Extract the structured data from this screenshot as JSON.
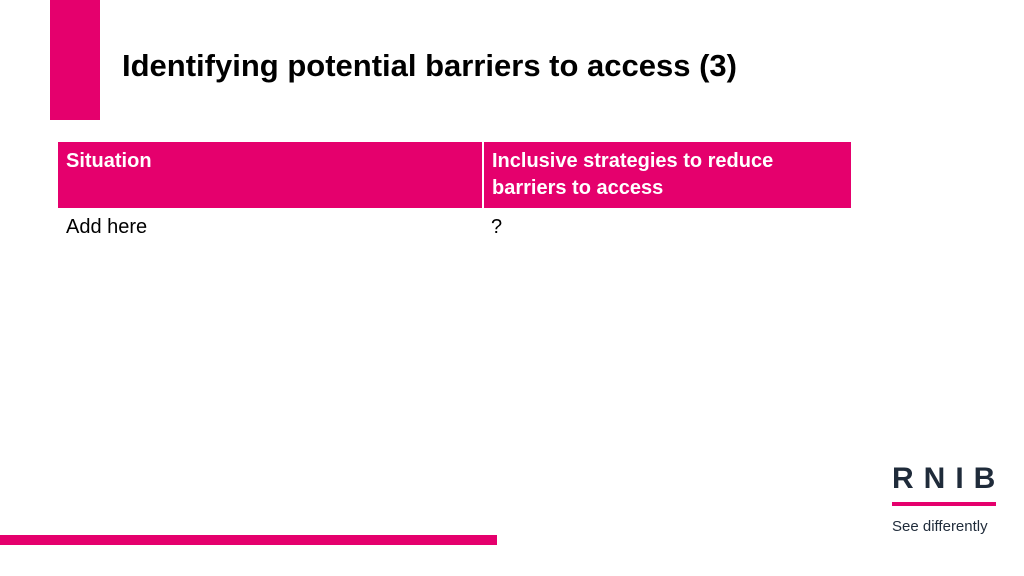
{
  "header": {
    "title": "Identifying potential barriers to access (3)"
  },
  "table": {
    "columns": [
      "Situation",
      "Inclusive strategies to reduce barriers to access"
    ],
    "rows": [
      [
        "Add here",
        "?"
      ]
    ]
  },
  "logo": {
    "name": "RNIB",
    "tagline": "See differently"
  }
}
